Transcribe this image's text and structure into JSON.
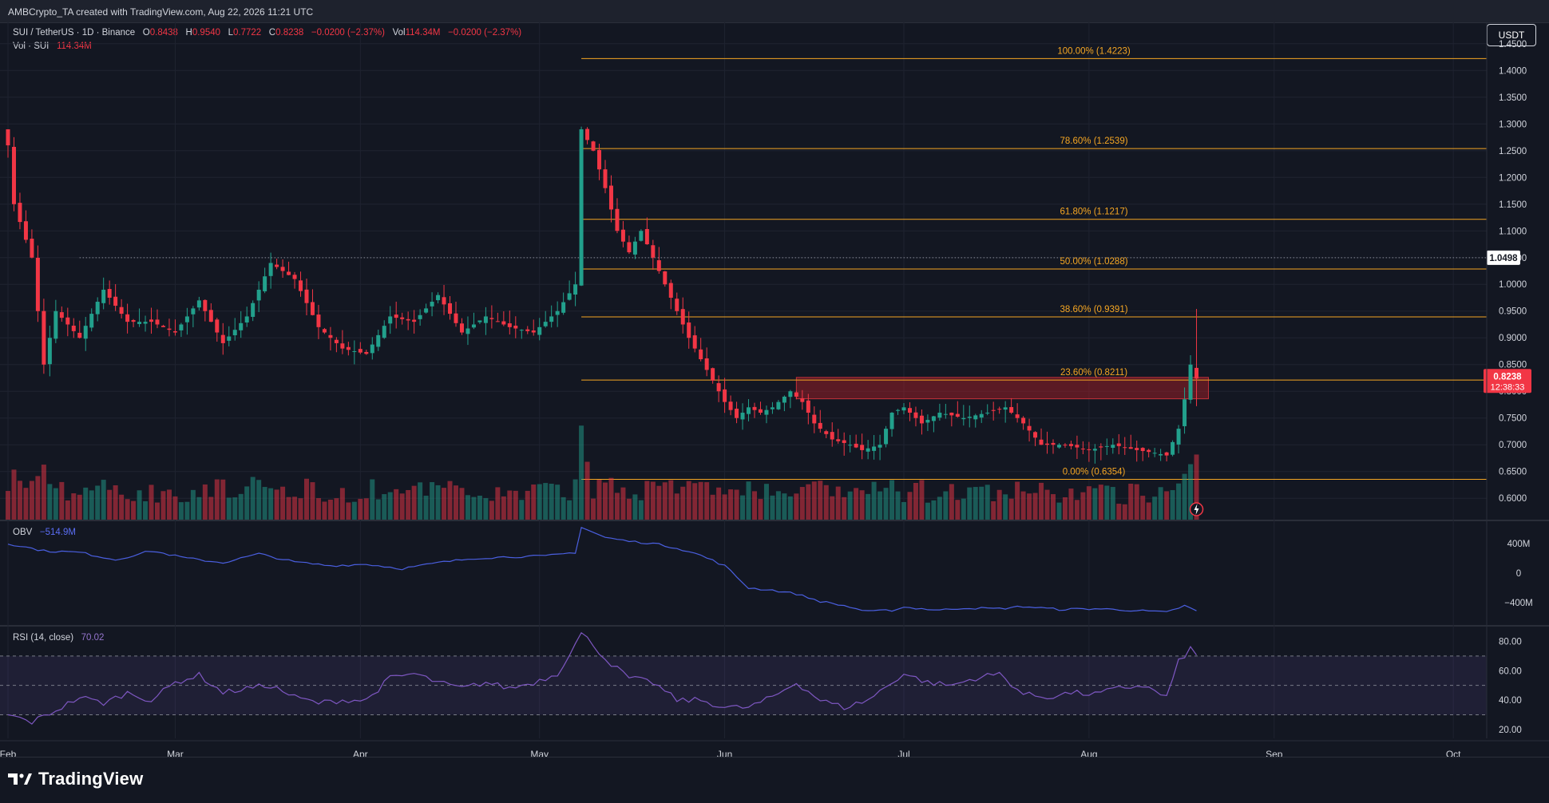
{
  "header": {
    "created_line": "AMBCrypto_TA created with TradingView.com, Aug 22, 2026 11:21 UTC"
  },
  "legend": {
    "pair": "SUI / TetherUS · 1D · Binance",
    "o_label": "O",
    "o_value": "0.8438",
    "h_label": "H",
    "h_value": "0.9540",
    "l_label": "L",
    "l_value": "0.7722",
    "c_label": "C",
    "c_value": "0.8238",
    "change": "−0.0200 (−2.37%)",
    "vol_label": "Vol",
    "vol_value": "114.34M",
    "vol_change": "−0.0200 (−2.37%)",
    "vol_line_label": "Vol · SUI",
    "vol_line_value": "114.34M"
  },
  "currency_button": "USDT",
  "obv": {
    "label": "OBV",
    "value": "−514.9M"
  },
  "rsi": {
    "label": "RSI (14, close)",
    "value": "70.02"
  },
  "footer": {
    "brand": "TradingView"
  },
  "colors": {
    "bg": "#131722",
    "up": "#22a08c",
    "down": "#f23645",
    "fib": "#f5a623",
    "obv": "#4a5fe0",
    "rsi": "#7e57c2"
  },
  "chart_data": [
    {
      "type": "candlestick",
      "title": "SUI / TetherUS · 1D · Binance",
      "ylim": [
        0.56,
        1.49
      ],
      "y_ticks": [
        "1.4500",
        "1.4000",
        "1.3500",
        "1.3000",
        "1.2500",
        "1.2000",
        "1.1500",
        "1.1000",
        "1.0500",
        "1.0000",
        "0.9500",
        "0.9000",
        "0.8500",
        "0.8000",
        "0.7500",
        "0.7000",
        "0.6500",
        "0.6000"
      ],
      "x_ticks": [
        "Feb",
        "Mar",
        "Apr",
        "May",
        "Jun",
        "Jul",
        "Aug",
        "Sep",
        "Oct"
      ],
      "x_tick_days": [
        0,
        28,
        59,
        89,
        120,
        150,
        181,
        212,
        242
      ],
      "close_key_points": [
        [
          0,
          1.26
        ],
        [
          1,
          1.15
        ],
        [
          4,
          1.05
        ],
        [
          6,
          0.85
        ],
        [
          8,
          0.95
        ],
        [
          12,
          0.9
        ],
        [
          16,
          0.99
        ],
        [
          20,
          0.93
        ],
        [
          24,
          0.93
        ],
        [
          28,
          0.91
        ],
        [
          32,
          0.97
        ],
        [
          36,
          0.89
        ],
        [
          40,
          0.94
        ],
        [
          44,
          1.04
        ],
        [
          48,
          1.01
        ],
        [
          52,
          0.92
        ],
        [
          56,
          0.88
        ],
        [
          60,
          0.87
        ],
        [
          64,
          0.94
        ],
        [
          68,
          0.93
        ],
        [
          72,
          0.98
        ],
        [
          76,
          0.91
        ],
        [
          80,
          0.94
        ],
        [
          84,
          0.92
        ],
        [
          88,
          0.91
        ],
        [
          92,
          0.95
        ],
        [
          95,
          1.0
        ],
        [
          96,
          1.29
        ],
        [
          98,
          1.25
        ],
        [
          100,
          1.18
        ],
        [
          102,
          1.1
        ],
        [
          104,
          1.06
        ],
        [
          106,
          1.1
        ],
        [
          108,
          1.05
        ],
        [
          110,
          1.0
        ],
        [
          112,
          0.95
        ],
        [
          114,
          0.9
        ],
        [
          116,
          0.86
        ],
        [
          118,
          0.82
        ],
        [
          120,
          0.78
        ],
        [
          122,
          0.75
        ],
        [
          124,
          0.77
        ],
        [
          126,
          0.76
        ],
        [
          128,
          0.77
        ],
        [
          131,
          0.8
        ],
        [
          133,
          0.78
        ],
        [
          135,
          0.74
        ],
        [
          138,
          0.71
        ],
        [
          141,
          0.7
        ],
        [
          143,
          0.69
        ],
        [
          146,
          0.7
        ],
        [
          148,
          0.76
        ],
        [
          150,
          0.77
        ],
        [
          153,
          0.74
        ],
        [
          156,
          0.76
        ],
        [
          160,
          0.75
        ],
        [
          164,
          0.76
        ],
        [
          167,
          0.77
        ],
        [
          170,
          0.74
        ],
        [
          173,
          0.7
        ],
        [
          177,
          0.7
        ],
        [
          181,
          0.69
        ],
        [
          185,
          0.7
        ],
        [
          189,
          0.69
        ],
        [
          192,
          0.685
        ],
        [
          194,
          0.68
        ],
        [
          196,
          0.73
        ],
        [
          197,
          0.785
        ],
        [
          198,
          0.85
        ],
        [
          199,
          0.8238
        ]
      ],
      "last_day": 199,
      "prev_close_line": 1.0498,
      "prev_close_label": "1.0498",
      "last_price_label": "0.8238",
      "countdown": "12:38:33",
      "fib_levels": [
        {
          "label": "100.00% (1.4223)",
          "value": 1.4223
        },
        {
          "label": "78.60% (1.2539)",
          "value": 1.2539
        },
        {
          "label": "61.80% (1.1217)",
          "value": 1.1217
        },
        {
          "label": "50.00% (1.0288)",
          "value": 1.0288
        },
        {
          "label": "38.60% (0.9391)",
          "value": 0.9391
        },
        {
          "label": "23.60% (0.8211)",
          "value": 0.8211
        },
        {
          "label": "0.00% (0.6354)",
          "value": 0.6354
        }
      ],
      "fib_start_day": 96,
      "zone": {
        "x_from_day": 132,
        "x_to_day": 201,
        "y_from": 0.786,
        "y_to": 0.826
      }
    },
    {
      "type": "line",
      "title": "OBV",
      "y_ticks": [
        "400M",
        "0",
        "−400M"
      ],
      "y_tick_values": [
        400,
        0,
        -400
      ],
      "ylim": [
        -700,
        700
      ],
      "key_points": [
        [
          0,
          400
        ],
        [
          6,
          300
        ],
        [
          12,
          280
        ],
        [
          18,
          180
        ],
        [
          24,
          300
        ],
        [
          30,
          200
        ],
        [
          36,
          140
        ],
        [
          42,
          260
        ],
        [
          48,
          150
        ],
        [
          54,
          100
        ],
        [
          60,
          120
        ],
        [
          66,
          60
        ],
        [
          72,
          140
        ],
        [
          78,
          200
        ],
        [
          84,
          220
        ],
        [
          90,
          230
        ],
        [
          95,
          280
        ],
        [
          96,
          620
        ],
        [
          100,
          480
        ],
        [
          104,
          430
        ],
        [
          108,
          400
        ],
        [
          112,
          340
        ],
        [
          116,
          240
        ],
        [
          120,
          100
        ],
        [
          124,
          -200
        ],
        [
          128,
          -230
        ],
        [
          132,
          -280
        ],
        [
          136,
          -380
        ],
        [
          140,
          -440
        ],
        [
          144,
          -520
        ],
        [
          148,
          -500
        ],
        [
          150,
          -460
        ],
        [
          156,
          -500
        ],
        [
          160,
          -470
        ],
        [
          166,
          -480
        ],
        [
          170,
          -450
        ],
        [
          176,
          -490
        ],
        [
          182,
          -480
        ],
        [
          188,
          -500
        ],
        [
          194,
          -530
        ],
        [
          197,
          -440
        ],
        [
          199,
          -514.9
        ]
      ]
    },
    {
      "type": "line",
      "title": "RSI (14, close)",
      "y_ticks": [
        "80.00",
        "60.00",
        "40.00",
        "20.00"
      ],
      "y_tick_values": [
        80,
        60,
        40,
        20
      ],
      "ylim": [
        14,
        90
      ],
      "bands": [
        30,
        50,
        70
      ],
      "key_points": [
        [
          0,
          30
        ],
        [
          4,
          25
        ],
        [
          8,
          33
        ],
        [
          12,
          42
        ],
        [
          16,
          38
        ],
        [
          20,
          45
        ],
        [
          24,
          40
        ],
        [
          28,
          52
        ],
        [
          32,
          57
        ],
        [
          36,
          45
        ],
        [
          40,
          48
        ],
        [
          44,
          50
        ],
        [
          48,
          42
        ],
        [
          52,
          38
        ],
        [
          56,
          40
        ],
        [
          60,
          40
        ],
        [
          64,
          55
        ],
        [
          68,
          58
        ],
        [
          72,
          52
        ],
        [
          76,
          48
        ],
        [
          80,
          52
        ],
        [
          84,
          48
        ],
        [
          88,
          52
        ],
        [
          92,
          58
        ],
        [
          96,
          85
        ],
        [
          98,
          78
        ],
        [
          100,
          68
        ],
        [
          104,
          55
        ],
        [
          108,
          52
        ],
        [
          112,
          40
        ],
        [
          116,
          40
        ],
        [
          120,
          35
        ],
        [
          124,
          35
        ],
        [
          128,
          42
        ],
        [
          132,
          52
        ],
        [
          136,
          40
        ],
        [
          140,
          35
        ],
        [
          144,
          40
        ],
        [
          148,
          52
        ],
        [
          150,
          58
        ],
        [
          154,
          52
        ],
        [
          158,
          50
        ],
        [
          162,
          55
        ],
        [
          166,
          58
        ],
        [
          170,
          44
        ],
        [
          174,
          42
        ],
        [
          178,
          45
        ],
        [
          182,
          44
        ],
        [
          186,
          48
        ],
        [
          190,
          50
        ],
        [
          194,
          42
        ],
        [
          196,
          66
        ],
        [
          198,
          75
        ],
        [
          199,
          70.02
        ]
      ]
    }
  ]
}
